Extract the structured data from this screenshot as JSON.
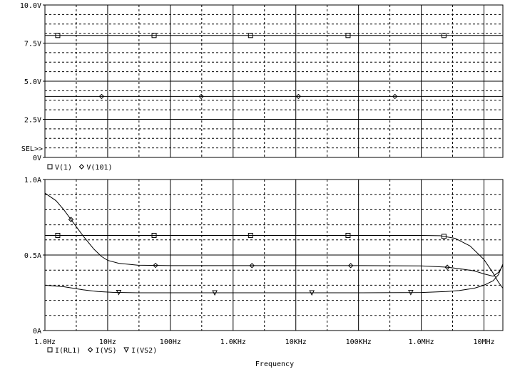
{
  "chart_data": [
    {
      "type": "line",
      "panel": "upper",
      "x_scale": "log",
      "xlim": [
        "1.0Hz",
        "20MHz"
      ],
      "x_range_hz": [
        1,
        20000000
      ],
      "ylim": [
        0,
        10
      ],
      "y_ticks": [
        {
          "value": 10,
          "label": "10.0V"
        },
        {
          "value": 7.5,
          "label": "7.5V"
        },
        {
          "value": 5,
          "label": "5.0V"
        },
        {
          "value": 2.5,
          "label": "2.5V"
        },
        {
          "value": 0,
          "label": "0V"
        }
      ],
      "selector_label": "SEL>>",
      "grid": true,
      "legend": [
        {
          "marker": "square",
          "label": "V(1)"
        },
        {
          "marker": "diamond",
          "label": "V(101)"
        }
      ],
      "series": [
        {
          "name": "V(1)",
          "marker": "square",
          "points": [
            [
              1,
              8
            ],
            [
              30,
              8
            ],
            [
              1000,
              8
            ],
            [
              30000,
              8
            ],
            [
              1000000,
              8
            ],
            [
              20000000,
              8
            ]
          ],
          "marker_x": [
            1.6,
            55,
            1900,
            68000,
            2300000
          ]
        },
        {
          "name": "V(101)",
          "marker": "diamond",
          "points": [
            [
              1,
              4
            ],
            [
              30,
              4
            ],
            [
              1000,
              4
            ],
            [
              30000,
              4
            ],
            [
              1000000,
              4
            ],
            [
              20000000,
              4
            ]
          ],
          "marker_x": [
            8,
            310,
            11000,
            380000
          ]
        }
      ]
    },
    {
      "type": "line",
      "panel": "lower",
      "x_scale": "log",
      "xlim": [
        "1.0Hz",
        "20MHz"
      ],
      "x_range_hz": [
        1,
        20000000
      ],
      "ylim": [
        0,
        1
      ],
      "y_ticks": [
        {
          "value": 1,
          "label": "1.0A"
        },
        {
          "value": 0.5,
          "label": "0.5A"
        },
        {
          "value": 0,
          "label": "0A"
        }
      ],
      "x_ticks": [
        {
          "value": 1,
          "label": "1.0Hz"
        },
        {
          "value": 10,
          "label": "10Hz"
        },
        {
          "value": 100,
          "label": "100Hz"
        },
        {
          "value": 1000,
          "label": "1.0KHz"
        },
        {
          "value": 10000,
          "label": "10KHz"
        },
        {
          "value": 100000,
          "label": "100KHz"
        },
        {
          "value": 1000000,
          "label": "1.0MHz"
        },
        {
          "value": 10000000,
          "label": "10MHz"
        }
      ],
      "xlabel": "Frequency",
      "grid": true,
      "legend": [
        {
          "marker": "square",
          "label": "I(RL1)"
        },
        {
          "marker": "diamond",
          "label": "I(VS)"
        },
        {
          "marker": "triangle-down",
          "label": "I(VS2)"
        }
      ],
      "series": [
        {
          "name": "I(RL1)",
          "marker": "square",
          "points": [
            [
              1,
              0.63
            ],
            [
              100,
              0.63
            ],
            [
              10000,
              0.63
            ],
            [
              1000000,
              0.63
            ],
            [
              2000000,
              0.628
            ],
            [
              3500000,
              0.61
            ],
            [
              6000000,
              0.56
            ],
            [
              10000000,
              0.47
            ],
            [
              14000000,
              0.38
            ],
            [
              17000000,
              0.32
            ],
            [
              20000000,
              0.28
            ]
          ],
          "marker_x": [
            1.6,
            55,
            1900,
            68000,
            2300000
          ]
        },
        {
          "name": "I(VS)",
          "marker": "diamond",
          "points": [
            [
              1,
              0.91
            ],
            [
              1.5,
              0.86
            ],
            [
              2,
              0.8
            ],
            [
              3,
              0.7
            ],
            [
              4,
              0.63
            ],
            [
              6,
              0.54
            ],
            [
              8,
              0.49
            ],
            [
              10,
              0.465
            ],
            [
              15,
              0.445
            ],
            [
              30,
              0.433
            ],
            [
              100,
              0.43
            ],
            [
              1000,
              0.43
            ],
            [
              100000,
              0.43
            ],
            [
              1000000,
              0.428
            ],
            [
              2500000,
              0.42
            ],
            [
              4000000,
              0.41
            ],
            [
              7000000,
              0.395
            ],
            [
              10000000,
              0.375
            ],
            [
              14000000,
              0.36
            ],
            [
              17000000,
              0.385
            ],
            [
              20000000,
              0.43
            ]
          ],
          "marker_x": [
            2.6,
            58,
            2000,
            75000,
            2600000
          ]
        },
        {
          "name": "I(VS2)",
          "marker": "triangle-down",
          "points": [
            [
              1,
              0.3
            ],
            [
              2,
              0.29
            ],
            [
              4,
              0.27
            ],
            [
              7,
              0.258
            ],
            [
              12,
              0.253
            ],
            [
              30,
              0.25
            ],
            [
              100,
              0.25
            ],
            [
              100000,
              0.25
            ],
            [
              1000000,
              0.252
            ],
            [
              2500000,
              0.258
            ],
            [
              4000000,
              0.265
            ],
            [
              7000000,
              0.28
            ],
            [
              10000000,
              0.3
            ],
            [
              14000000,
              0.33
            ],
            [
              17000000,
              0.37
            ],
            [
              20000000,
              0.44
            ]
          ],
          "marker_x": [
            15,
            510,
            18000,
            680000
          ]
        }
      ]
    }
  ]
}
